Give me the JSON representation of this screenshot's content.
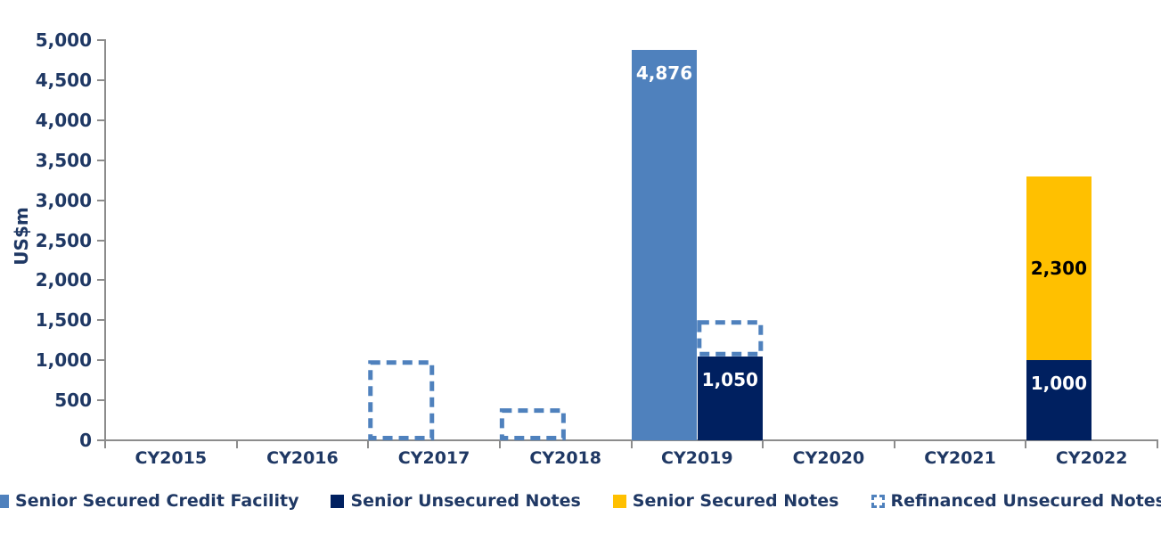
{
  "chart_data": {
    "type": "bar",
    "title": "",
    "ylabel": "US$m",
    "xlabel": "",
    "categories": [
      "CY2015",
      "CY2016",
      "CY2017",
      "CY2018",
      "CY2019",
      "CY2020",
      "CY2021",
      "CY2022"
    ],
    "ylim": [
      0,
      5000
    ],
    "ytick_step": 500,
    "grid": false,
    "legend_position": "bottom",
    "series": [
      {
        "name": "Senior Secured Credit Facility",
        "color": "#4F81BD",
        "marker": "solid-square"
      },
      {
        "name": "Senior Unsecured Notes",
        "color": "#002060",
        "marker": "solid-square"
      },
      {
        "name": "Senior Secured Notes",
        "color": "#FFC000",
        "marker": "solid-square"
      },
      {
        "name": "Refinanced Unsecured Notes",
        "color": "#4F81BD",
        "marker": "dashed-outline-square"
      }
    ],
    "bars": [
      {
        "category": "CY2017",
        "series": "Refinanced Unsecured Notes",
        "value": 1000,
        "base": 0,
        "slot": "left",
        "style": "dashed-outline",
        "label": ""
      },
      {
        "category": "CY2018",
        "series": "Refinanced Unsecured Notes",
        "value": 400,
        "base": 0,
        "slot": "left",
        "style": "dashed-outline",
        "label": ""
      },
      {
        "category": "CY2019",
        "series": "Senior Secured Credit Facility",
        "value": 4876,
        "base": 0,
        "slot": "left",
        "style": "solid",
        "label": "4,876",
        "label_color": "#FFFFFF",
        "label_pos": "inside-top"
      },
      {
        "category": "CY2019",
        "series": "Senior Unsecured Notes",
        "value": 1050,
        "base": 0,
        "slot": "right",
        "style": "solid",
        "label": "1,050",
        "label_color": "#FFFFFF",
        "label_pos": "inside-top"
      },
      {
        "category": "CY2019",
        "series": "Refinanced Unsecured Notes",
        "value": 450,
        "base": 1050,
        "slot": "right",
        "style": "dashed-outline",
        "label": ""
      },
      {
        "category": "CY2022",
        "series": "Senior Unsecured Notes",
        "value": 1000,
        "base": 0,
        "slot": "left",
        "style": "solid",
        "label": "1,000",
        "label_color": "#FFFFFF",
        "label_pos": "inside-top"
      },
      {
        "category": "CY2022",
        "series": "Senior Secured Notes",
        "value": 2300,
        "base": 1000,
        "slot": "left",
        "style": "solid",
        "label": "2,300",
        "label_color": "#000000",
        "label_pos": "center"
      }
    ],
    "colors": {
      "axis_text": "#1F3864",
      "axis_line": "#8C8C8C",
      "background": "#FFFFFF"
    }
  }
}
